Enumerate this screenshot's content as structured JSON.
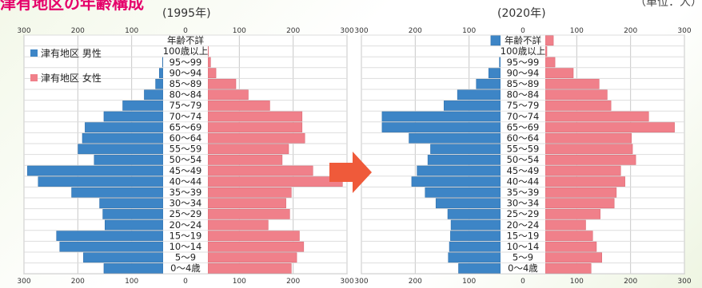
{
  "page": {
    "title": "津有地区の年齢構成",
    "unit": "（単位：人）"
  },
  "legend": {
    "male": "津有地区 男性",
    "female": "津有地区 女性"
  },
  "colors": {
    "male": "#3d85c6",
    "female": "#f0808a",
    "arrow": "#ef5a3a"
  },
  "chart_data": [
    {
      "type": "bar",
      "title": "(1995年)",
      "categories": [
        "年齢不詳",
        "100歳以上",
        "95～99",
        "90～94",
        "85～89",
        "80～84",
        "75～79",
        "70～74",
        "65～69",
        "60～64",
        "55～59",
        "50～54",
        "45～49",
        "40～44",
        "35～39",
        "30～34",
        "25～29",
        "20～24",
        "15～19",
        "10～14",
        "5～9",
        "0～4歳"
      ],
      "series": [
        {
          "name": "津有地区 男性",
          "values": [
            0,
            0,
            1,
            7,
            14,
            35,
            75,
            110,
            145,
            150,
            158,
            128,
            252,
            232,
            170,
            118,
            112,
            108,
            198,
            192,
            148,
            110
          ]
        },
        {
          "name": "津有地区 女性",
          "values": [
            0,
            1,
            5,
            15,
            52,
            75,
            115,
            175,
            175,
            180,
            150,
            138,
            195,
            250,
            155,
            145,
            152,
            112,
            170,
            178,
            165,
            155
          ]
        }
      ],
      "xlim": [
        -300,
        300
      ],
      "x_tick_labels": [
        "300",
        "200",
        "100",
        "0",
        "100",
        "200",
        "300"
      ],
      "grid": true
    },
    {
      "type": "bar",
      "title": "(2020年)",
      "categories": [
        "年齢不詳",
        "100歳以上",
        "95～99",
        "90～94",
        "85～89",
        "80～84",
        "75～79",
        "70～74",
        "65～69",
        "60～64",
        "55～59",
        "50～54",
        "45～49",
        "40～44",
        "35～39",
        "30～34",
        "25～29",
        "20～24",
        "15～19",
        "10～14",
        "5～9",
        "0～4歳"
      ],
      "series": [
        {
          "name": "津有地区 男性",
          "values": [
            18,
            0,
            2,
            22,
            45,
            80,
            105,
            220,
            220,
            170,
            130,
            135,
            155,
            165,
            140,
            120,
            98,
            92,
            93,
            95,
            97,
            78
          ]
        },
        {
          "name": "津有地区 女性",
          "values": [
            15,
            3,
            18,
            52,
            100,
            115,
            122,
            192,
            240,
            160,
            162,
            168,
            140,
            148,
            132,
            128,
            102,
            75,
            88,
            95,
            105,
            85
          ]
        }
      ],
      "xlim": [
        -300,
        300
      ],
      "x_tick_labels": [
        "300",
        "200",
        "100",
        "0",
        "100",
        "200",
        "300"
      ],
      "grid": true
    }
  ]
}
